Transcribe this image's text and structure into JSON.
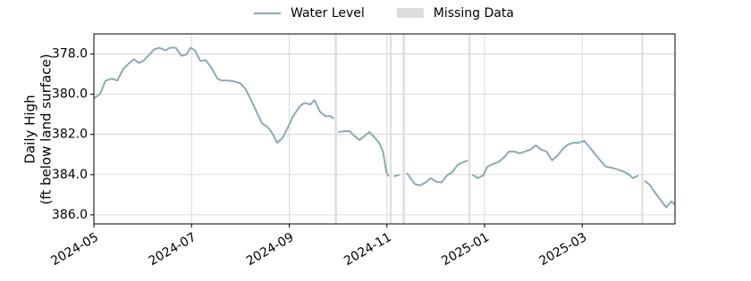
{
  "chart_data": {
    "type": "line",
    "ylabel": [
      "Daily High",
      "(ft below land surface)"
    ],
    "xlim": [
      0,
      11.9
    ],
    "ylim": [
      377.0,
      386.45
    ],
    "y_inverted": true,
    "grid": true,
    "legend": "top",
    "xticks": [
      {
        "value": 0,
        "label": "2024-05"
      },
      {
        "value": 2,
        "label": "2024-07"
      },
      {
        "value": 4,
        "label": "2024-09"
      },
      {
        "value": 6,
        "label": "2024-11"
      },
      {
        "value": 8,
        "label": "2025-01"
      },
      {
        "value": 10,
        "label": "2025-03"
      }
    ],
    "yticks": [
      {
        "value": 378,
        "label": "378.0"
      },
      {
        "value": 380,
        "label": "380.0"
      },
      {
        "value": 382,
        "label": "382.0"
      },
      {
        "value": 384,
        "label": "384.0"
      },
      {
        "value": 386,
        "label": "386.0"
      }
    ],
    "x": [
      0.0,
      0.13,
      0.24,
      0.37,
      0.48,
      0.6,
      0.73,
      0.82,
      0.92,
      1.01,
      1.1,
      1.23,
      1.34,
      1.47,
      1.56,
      1.68,
      1.79,
      1.89,
      1.98,
      2.07,
      2.18,
      2.29,
      2.4,
      2.53,
      2.62,
      2.75,
      2.88,
      3.0,
      3.11,
      3.22,
      3.33,
      3.44,
      3.57,
      3.66,
      3.75,
      3.86,
      3.97,
      4.08,
      4.23,
      4.32,
      4.43,
      4.52,
      4.63,
      4.74,
      4.85,
      4.91,
      4.95,
      5.0,
      5.13,
      5.24,
      5.33,
      5.44,
      5.53,
      5.64,
      5.73,
      5.84,
      5.92,
      5.99,
      6.04,
      6.08,
      6.14,
      6.26,
      6.34,
      6.41,
      6.48,
      6.58,
      6.68,
      6.79,
      6.9,
      7.01,
      7.12,
      7.23,
      7.34,
      7.45,
      7.56,
      7.66,
      7.69,
      7.75,
      7.86,
      7.97,
      8.06,
      8.17,
      8.28,
      8.39,
      8.5,
      8.61,
      8.72,
      8.83,
      8.94,
      9.05,
      9.16,
      9.27,
      9.38,
      9.49,
      9.6,
      9.71,
      9.82,
      9.93,
      10.04,
      10.15,
      10.26,
      10.37,
      10.48,
      10.59,
      10.71,
      10.82,
      10.93,
      11.04,
      11.15,
      11.23,
      11.28,
      11.39,
      11.5,
      11.61,
      11.72,
      11.83,
      11.9
    ],
    "series": [
      {
        "name": "Water Level",
        "color": "#8aabb5",
        "values": [
          380.21,
          379.98,
          379.32,
          379.23,
          379.32,
          378.75,
          378.44,
          378.26,
          378.44,
          378.35,
          378.13,
          377.78,
          377.69,
          377.82,
          377.69,
          377.69,
          378.09,
          378.04,
          377.69,
          377.82,
          378.35,
          378.31,
          378.66,
          379.23,
          379.32,
          379.32,
          379.37,
          379.46,
          379.76,
          380.29,
          380.87,
          381.44,
          381.66,
          381.97,
          382.41,
          382.19,
          381.66,
          381.09,
          380.56,
          380.43,
          380.51,
          380.29,
          380.87,
          381.09,
          381.09,
          381.22,
          null,
          381.88,
          381.84,
          381.84,
          382.06,
          382.28,
          382.1,
          381.88,
          382.1,
          382.41,
          382.85,
          383.87,
          384.09,
          null,
          384.09,
          384.0,
          null,
          383.91,
          384.17,
          384.48,
          384.53,
          384.39,
          384.17,
          384.35,
          384.39,
          384.04,
          383.87,
          383.51,
          383.38,
          383.29,
          null,
          384.0,
          384.17,
          384.04,
          383.6,
          383.47,
          383.38,
          383.16,
          382.85,
          382.85,
          382.94,
          382.85,
          382.76,
          382.54,
          382.76,
          382.85,
          383.29,
          383.07,
          382.72,
          382.5,
          382.41,
          382.41,
          382.32,
          382.63,
          382.98,
          383.29,
          383.6,
          383.65,
          383.73,
          383.82,
          383.95,
          384.17,
          384.04,
          null,
          384.3,
          384.53,
          384.92,
          385.28,
          385.63,
          385.32,
          385.5
        ]
      },
      {
        "name": "Missing Data",
        "color": "#dcdcdc",
        "ranges": [
          [
            4.93,
            4.98
          ],
          [
            6.06,
            6.1
          ],
          [
            6.32,
            6.37
          ],
          [
            7.67,
            7.71
          ],
          [
            11.21,
            11.25
          ]
        ]
      }
    ]
  }
}
